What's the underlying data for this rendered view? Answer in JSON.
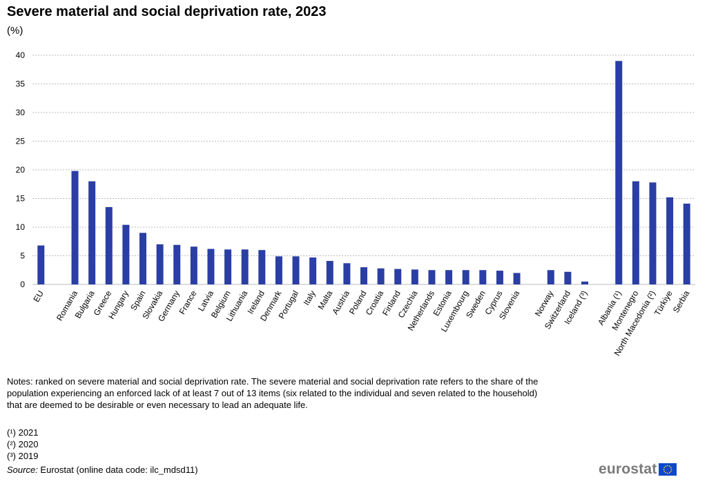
{
  "header": {
    "title": "Severe material and social deprivation rate, 2023",
    "unit": "(%)"
  },
  "chart_data": {
    "type": "bar",
    "title": "Severe material and social deprivation rate, 2023",
    "ylabel": "(%)",
    "xlabel": "",
    "ylim": [
      0,
      40
    ],
    "yticks": [
      0,
      5,
      10,
      15,
      20,
      25,
      30,
      35,
      40
    ],
    "grid": true,
    "color": "#2b3ea4",
    "gridColor": "#b9b9b9",
    "categories": [
      "EU",
      "",
      "Romania",
      "Bulgaria",
      "Greece",
      "Hungary",
      "Spain",
      "Slovakia",
      "Germany",
      "France",
      "Latvia",
      "Belgium",
      "Lithuania",
      "Ireland",
      "Denmark",
      "Portugal",
      "Italy",
      "Malta",
      "Austria",
      "Poland",
      "Croatia",
      "Finland",
      "Czechia",
      "Netherlands",
      "Estonia",
      "Luxembourg",
      "Sweden",
      "Cyprus",
      "Slovenia",
      "",
      "Norway",
      "Switzerland",
      "Iceland (³)",
      "",
      "Albania (¹)",
      "Montenegro",
      "North Macedonia (²)",
      "Türkiye",
      "Serbia"
    ],
    "values": [
      6.8,
      null,
      19.8,
      18.0,
      13.5,
      10.4,
      9.0,
      7.0,
      6.9,
      6.6,
      6.2,
      6.1,
      6.1,
      6.0,
      4.9,
      4.9,
      4.7,
      4.1,
      3.7,
      3.0,
      2.8,
      2.7,
      2.6,
      2.5,
      2.5,
      2.5,
      2.5,
      2.4,
      2.0,
      null,
      2.5,
      2.2,
      0.5,
      null,
      39.0,
      18.0,
      17.8,
      15.2,
      14.1
    ]
  },
  "notes": {
    "text": "Notes: ranked on severe material and social deprivation rate. The severe material and social deprivation rate refers to the share of the population experiencing an enforced lack of at least 7 out of 13 items (six related to the individual and seven related to the household) that are deemed to be desirable or even necessary to lead an adequate life.",
    "footnote1": "(¹) 2021",
    "footnote2": "(²) 2020",
    "footnote3": "(³) 2019",
    "source_label": "Source:",
    "source_text": " Eurostat (online data code: ilc_mdsd11)"
  },
  "logo": {
    "text": "eurostat"
  }
}
